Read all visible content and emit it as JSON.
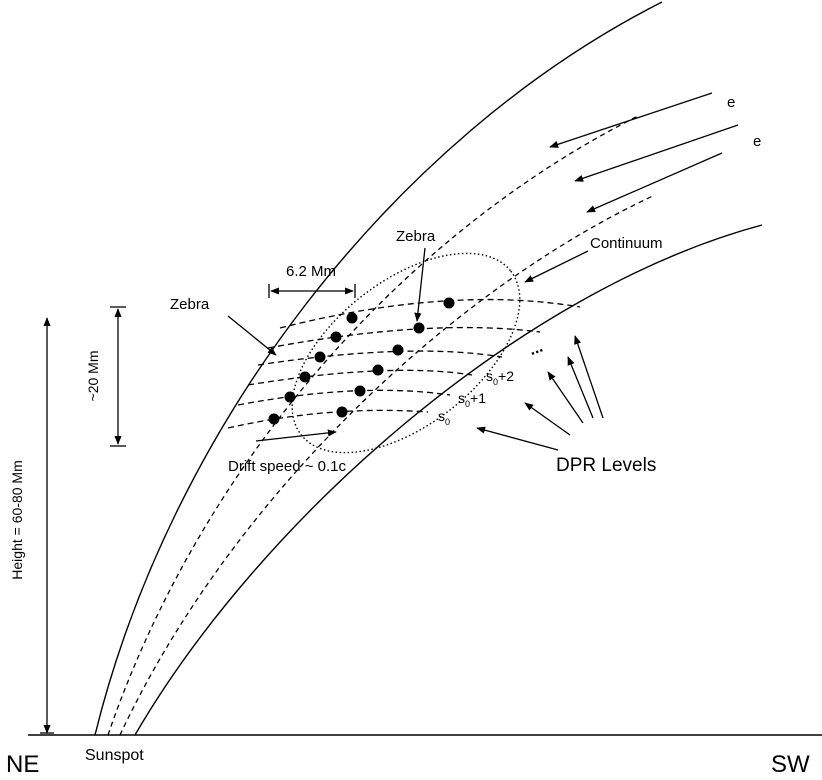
{
  "labels": {
    "ne": "NE",
    "sw": "SW",
    "sunspot": "Sunspot",
    "height": "Height = 60-80 Mm",
    "width_scale": "6.2 Mm",
    "vertical_scale": "~20 Mm",
    "zebra_left": "Zebra",
    "zebra_top": "Zebra",
    "continuum": "Continuum",
    "drift_speed": "Drift speed ~ 0.1c",
    "dpr_levels": "DPR Levels",
    "electron_1": "e",
    "electron_2": "e",
    "level_s0": "s",
    "level_s0_1": "s",
    "level_s0_1_suffix": "+1",
    "level_s0_2": "s",
    "level_s0_2_suffix": "+2",
    "subscript": "0",
    "ellipsis": "..."
  }
}
